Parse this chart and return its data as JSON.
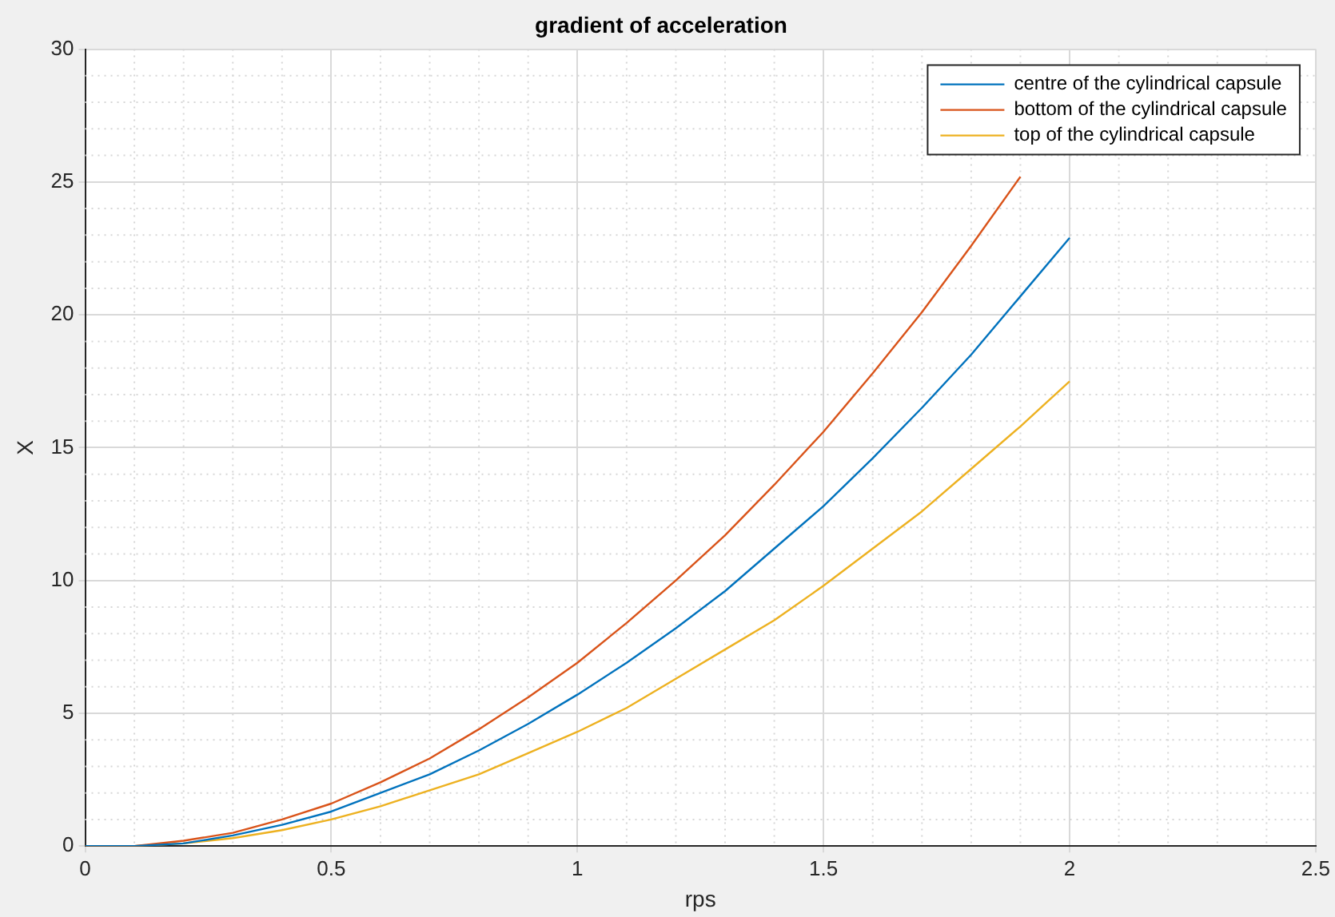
{
  "chart_data": {
    "type": "line",
    "title": "gradient of acceleration",
    "xlabel": "rps",
    "ylabel": "X",
    "x": [
      0,
      0.1,
      0.2,
      0.3,
      0.4,
      0.5,
      0.6,
      0.7,
      0.8,
      0.9,
      1.0,
      1.1,
      1.2,
      1.3,
      1.4,
      1.5,
      1.6,
      1.7,
      1.8,
      1.9,
      2.0
    ],
    "series": [
      {
        "name": "centre of the cylindrical capsule",
        "color": "#0072bd",
        "values": [
          0,
          0,
          0.1,
          0.4,
          0.8,
          1.3,
          2.0,
          2.7,
          3.6,
          4.6,
          5.7,
          6.9,
          8.2,
          9.6,
          11.2,
          12.8,
          14.6,
          16.5,
          18.5,
          20.7,
          22.9
        ]
      },
      {
        "name": "bottom of the cylindrical capsule",
        "color": "#d95319",
        "values": [
          0,
          0,
          0.2,
          0.5,
          1.0,
          1.6,
          2.4,
          3.3,
          4.4,
          5.6,
          6.9,
          8.4,
          10.0,
          11.7,
          13.6,
          15.6,
          17.8,
          20.1,
          22.6,
          25.2,
          null
        ]
      },
      {
        "name": "top of the cylindrical capsule",
        "color": "#edb120",
        "values": [
          0,
          0,
          0.1,
          0.3,
          0.6,
          1.0,
          1.5,
          2.1,
          2.7,
          3.5,
          4.3,
          5.2,
          6.3,
          7.4,
          8.5,
          9.8,
          11.2,
          12.6,
          14.2,
          15.8,
          17.5
        ]
      }
    ],
    "xlim": [
      0,
      2.5
    ],
    "xticks": [
      0,
      0.5,
      1,
      1.5,
      2,
      2.5
    ],
    "ylim": [
      0,
      30
    ],
    "yticks": [
      0,
      5,
      10,
      15,
      20,
      25,
      30
    ],
    "grid": true,
    "legend": "top right",
    "marker": "none",
    "line_style": "solid"
  }
}
